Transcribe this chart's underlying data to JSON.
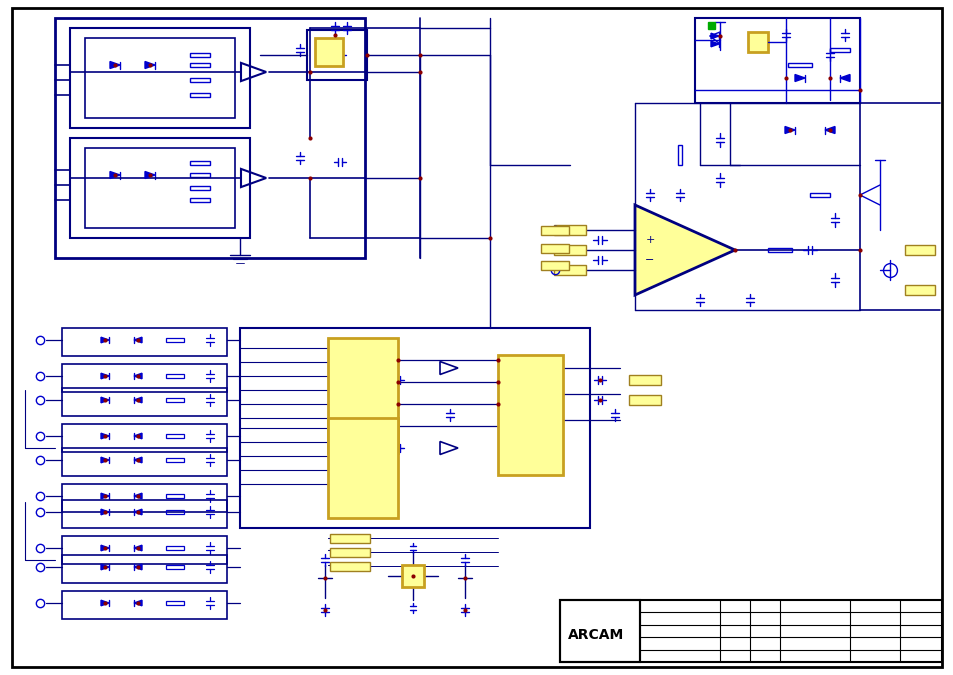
{
  "bg": "#ffffff",
  "bl": "#0000CD",
  "dk": "#000080",
  "rl": "#8B0000",
  "yl": "#FFFF99",
  "yr": "#C8A020",
  "gl": "#00AA00",
  "bk": "#000000",
  "arcam_text": "ARCAM",
  "fig_width": 9.54,
  "fig_height": 6.75,
  "dpi": 100
}
